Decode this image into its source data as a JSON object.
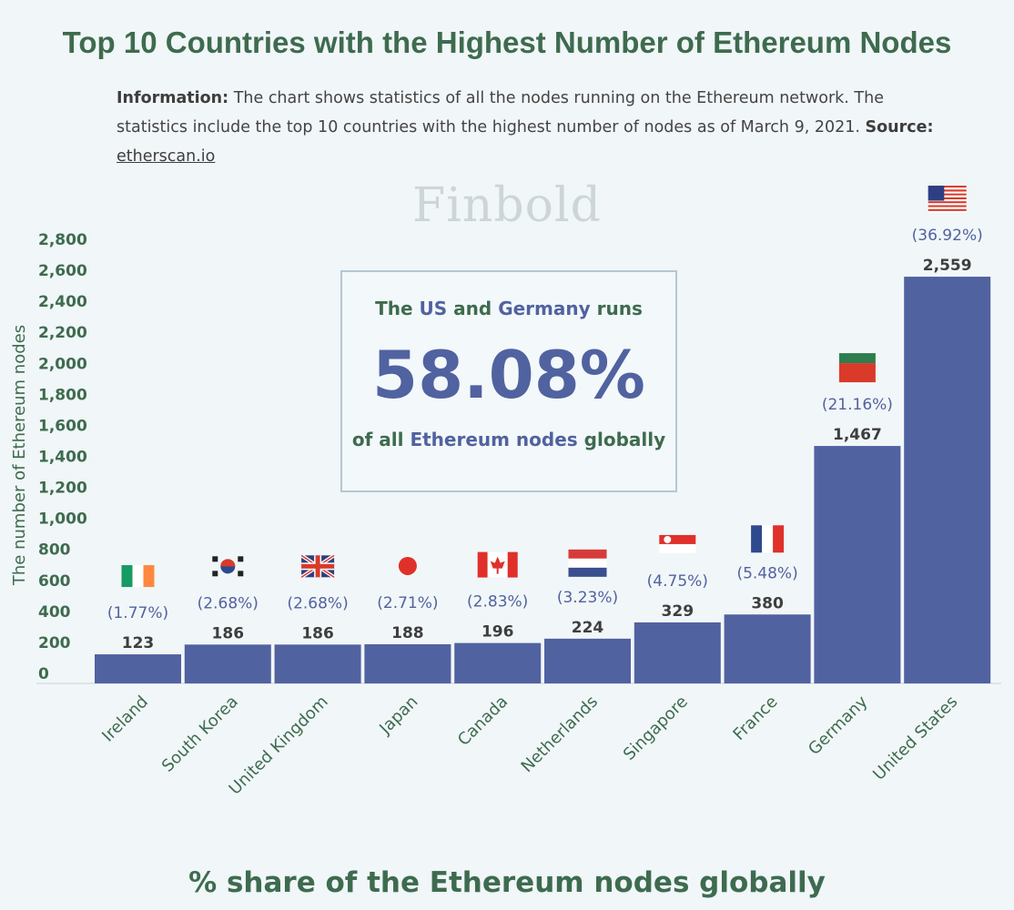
{
  "title": "Top 10 Countries with the Highest Number of Ethereum Nodes",
  "info": {
    "label": "Information:",
    "text": "The chart shows statistics of all the nodes running on the Ethereum network. The statistics include the top 10 countries with the highest number of nodes as of March 9, 2021.",
    "source_label": "Source:",
    "source_link": "etherscan.io"
  },
  "watermark": "Finbold",
  "callout": {
    "line1_pre": "The ",
    "line1_us": "US",
    "line1_mid": " and ",
    "line1_de": "Germany",
    "line1_post": " runs",
    "big": "58.08%",
    "line3_pre": "of all ",
    "line3_hl": "Ethereum nodes",
    "line3_post": " globally"
  },
  "bottom_title": "% share of the Ethereum nodes globally",
  "colors": {
    "bar": "#5162a0",
    "title": "#3e6b4f",
    "pct": "#5162a0"
  },
  "chart_data": {
    "type": "bar",
    "ylabel": "The number of Ethereum nodes",
    "ylim": [
      0,
      2800
    ],
    "yticks": [
      0,
      200,
      400,
      600,
      800,
      1000,
      1200,
      1400,
      1600,
      1800,
      2000,
      2200,
      2400,
      2600,
      2800
    ],
    "ytick_labels": [
      "0",
      "200",
      "400",
      "600",
      "800",
      "1,000",
      "1,200",
      "1,400",
      "1,600",
      "1,800",
      "2,000",
      "2,200",
      "2,400",
      "2,600",
      "2,800"
    ],
    "categories": [
      "Ireland",
      "South Korea",
      "United Kingdom",
      "Japan",
      "Canada",
      "Netherlands",
      "Singapore",
      "France",
      "Germany",
      "United States"
    ],
    "values": [
      123,
      186,
      186,
      188,
      196,
      224,
      329,
      380,
      1467,
      2559
    ],
    "value_labels": [
      "123",
      "186",
      "186",
      "188",
      "196",
      "224",
      "329",
      "380",
      "1,467",
      "2,559"
    ],
    "shares": [
      "(1.77%)",
      "(2.68%)",
      "(2.68%)",
      "(2.71%)",
      "(2.83%)",
      "(3.23%)",
      "(4.75%)",
      "(5.48%)",
      "(21.16%)",
      "(36.92%)"
    ],
    "flags": [
      "flag-ireland-icon",
      "flag-south-korea-icon",
      "flag-united-kingdom-icon",
      "flag-japan-icon",
      "flag-canada-icon",
      "flag-netherlands-icon",
      "flag-singapore-icon",
      "flag-france-icon",
      "flag-germany-icon",
      "flag-united-states-icon"
    ],
    "grid": false
  }
}
